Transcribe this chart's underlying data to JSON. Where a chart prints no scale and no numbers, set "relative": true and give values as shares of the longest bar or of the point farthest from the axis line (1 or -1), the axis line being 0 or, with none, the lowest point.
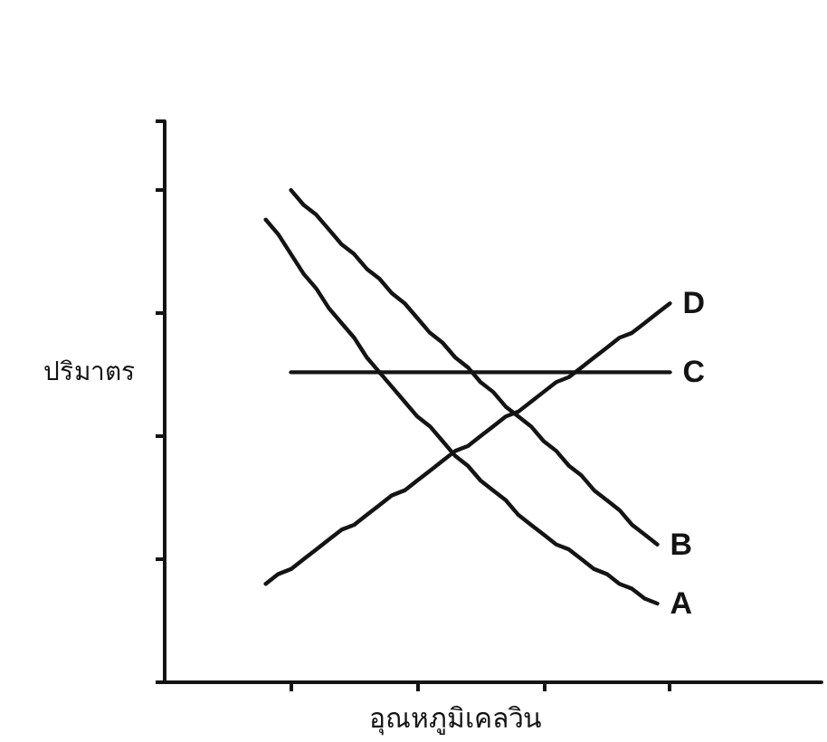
{
  "chart_data": {
    "type": "line",
    "relative": true,
    "xlabel": "อุณหภูมิเคลวิน",
    "ylabel": "ปริมาตร",
    "marker": "none",
    "line_style": "solid",
    "categories": [
      null,
      null,
      null,
      null,
      null,
      null,
      null,
      null,
      null,
      null,
      null,
      null,
      null,
      null,
      null,
      null,
      null,
      null,
      null,
      null,
      null,
      null,
      null,
      null,
      null,
      null,
      null,
      null,
      null,
      null,
      null,
      null,
      null,
      null,
      null,
      null,
      null,
      null,
      null,
      null,
      null,
      null,
      null,
      null,
      null,
      null,
      null,
      null,
      null,
      null,
      null,
      null,
      null
    ],
    "series": [
      {
        "name": "A",
        "color": "#141414",
        "values": [
          null,
          null,
          null,
          null,
          null,
          null,
          null,
          null,
          0.94,
          0.91,
          0.87,
          0.83,
          0.8,
          0.76,
          0.73,
          0.7,
          0.66,
          0.63,
          0.6,
          0.57,
          0.54,
          0.52,
          0.49,
          0.46,
          0.44,
          0.41,
          0.39,
          0.37,
          0.34,
          0.32,
          0.3,
          0.28,
          0.27,
          0.25,
          0.23,
          0.22,
          0.2,
          0.19,
          0.17,
          0.16,
          null,
          null,
          null,
          null,
          null,
          null,
          null,
          null,
          null,
          null,
          null,
          null,
          null
        ]
      },
      {
        "name": "B",
        "color": "#141414",
        "values": [
          null,
          null,
          null,
          null,
          null,
          null,
          null,
          null,
          null,
          null,
          1,
          0.97,
          0.95,
          0.92,
          0.89,
          0.87,
          0.84,
          0.82,
          0.79,
          0.77,
          0.74,
          0.71,
          0.69,
          0.66,
          0.64,
          0.61,
          0.59,
          0.56,
          0.54,
          0.52,
          0.49,
          0.47,
          0.44,
          0.42,
          0.39,
          0.37,
          0.35,
          0.32,
          0.3,
          0.28,
          null,
          null,
          null,
          null,
          null,
          null,
          null,
          null,
          null,
          null,
          null,
          null,
          null
        ]
      },
      {
        "name": "C",
        "color": "#141414",
        "values": [
          null,
          null,
          null,
          null,
          null,
          null,
          null,
          null,
          null,
          null,
          0.63,
          0.63,
          0.63,
          0.63,
          0.63,
          0.63,
          0.63,
          0.63,
          0.63,
          0.63,
          0.63,
          0.63,
          0.63,
          0.63,
          0.63,
          0.63,
          0.63,
          0.63,
          0.63,
          0.63,
          0.63,
          0.63,
          0.63,
          0.63,
          0.63,
          0.63,
          0.63,
          0.63,
          0.63,
          0.63,
          0.63,
          null,
          null,
          null,
          null,
          null,
          null,
          null,
          null,
          null,
          null,
          null,
          null
        ]
      },
      {
        "name": "D",
        "color": "#141414",
        "values": [
          null,
          null,
          null,
          null,
          null,
          null,
          null,
          null,
          0.2,
          0.22,
          0.23,
          0.25,
          0.27,
          0.29,
          0.31,
          0.32,
          0.34,
          0.36,
          0.38,
          0.39,
          0.41,
          0.43,
          0.45,
          0.47,
          0.48,
          0.5,
          0.52,
          0.54,
          0.55,
          0.57,
          0.59,
          0.61,
          0.62,
          0.64,
          0.66,
          0.68,
          0.7,
          0.71,
          0.73,
          0.75,
          0.77,
          null,
          null,
          null,
          null,
          null,
          null,
          null,
          null,
          null,
          null,
          null,
          null
        ]
      }
    ]
  }
}
